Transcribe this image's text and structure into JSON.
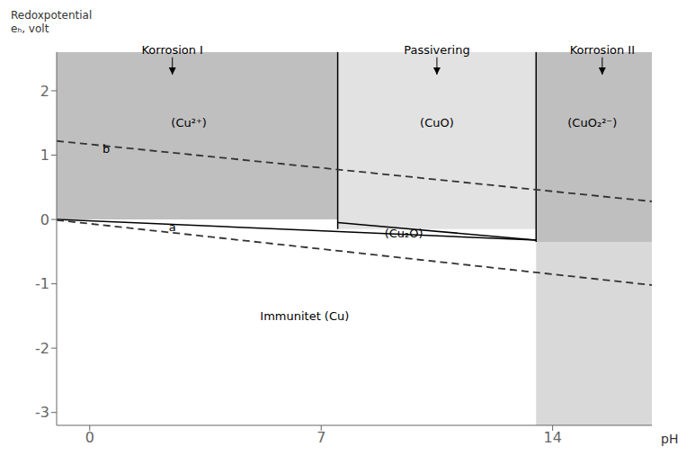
{
  "chart_data": {
    "type": "region",
    "xlabel": "pH",
    "ylabel": [
      "Redoxpotential",
      "eₕ, volt"
    ],
    "xlim": [
      -1,
      17
    ],
    "ylim": [
      -3.2,
      2.6
    ],
    "xticks": [
      0,
      7,
      14
    ],
    "yticks": [
      -3,
      -2,
      -1,
      0,
      1,
      2
    ],
    "regions": [
      {
        "x": [
          -1,
          7.5
        ],
        "y": [
          0.0,
          2.6
        ],
        "color": "#aaaaaa"
      },
      {
        "x": [
          7.5,
          13.5
        ],
        "y": [
          -0.15,
          2.6
        ],
        "color": "#d8d8d8"
      },
      {
        "x": [
          13.5,
          17
        ],
        "y": [
          -0.35,
          2.6
        ],
        "color": "#aaaaaa"
      },
      {
        "x": [
          13.5,
          17
        ],
        "y": [
          -3.2,
          -0.35
        ],
        "color": "#cccccc"
      }
    ],
    "lines": [
      {
        "x": [
          -1,
          13.5
        ],
        "y": [
          0.0,
          -0.32
        ],
        "color": "#000000",
        "line_style": "solid"
      },
      {
        "x": [
          7.5,
          13.5
        ],
        "y": [
          -0.05,
          -0.32
        ],
        "color": "#000000",
        "line_style": "solid"
      },
      {
        "x": [
          7.5,
          7.5
        ],
        "y": [
          -0.15,
          2.6
        ],
        "color": "#000000",
        "line_style": "solid"
      },
      {
        "x": [
          13.5,
          13.5
        ],
        "y": [
          -0.35,
          2.6
        ],
        "color": "#000000",
        "line_style": "solid"
      },
      {
        "x": [
          -1,
          17
        ],
        "y": [
          -0.01,
          -1.02
        ],
        "color": "#333333",
        "line_style": "dashed"
      },
      {
        "x": [
          -1,
          17
        ],
        "y": [
          1.22,
          0.28
        ],
        "color": "#333333",
        "line_style": "dashed"
      }
    ],
    "annotations": [
      {
        "text": "a",
        "x": 2.5,
        "y": -0.12
      },
      {
        "text": "b",
        "x": 0.5,
        "y": 1.1
      },
      {
        "text": "(Cu²⁺)",
        "x": 3.0,
        "y": 1.5
      },
      {
        "text": "(CuO)",
        "x": 10.5,
        "y": 1.5
      },
      {
        "text": "(CuO₂²⁻)",
        "x": 15.2,
        "y": 1.5
      },
      {
        "text": "(Cu₂O)",
        "x": 9.5,
        "y": -0.22
      },
      {
        "text": "Immunitet (Cu)",
        "x": 6.5,
        "y": -1.5
      },
      {
        "text": "Korrosion I",
        "x": 2.5,
        "y": 2.52,
        "arrow_to": 2.25
      },
      {
        "text": "Passivering",
        "x": 10.5,
        "y": 2.52,
        "arrow_to": 2.25
      },
      {
        "text": "Korrosion II",
        "x": 15.5,
        "y": 2.52,
        "arrow_to": 2.25
      }
    ]
  }
}
